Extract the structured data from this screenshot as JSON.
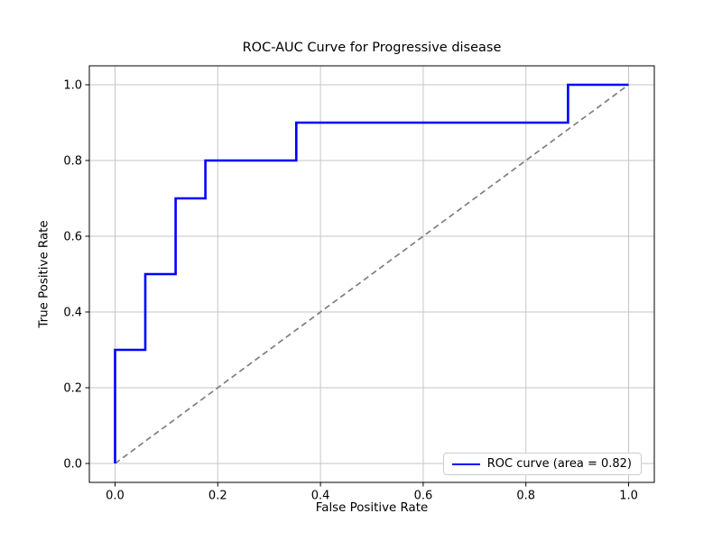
{
  "chart_data": {
    "type": "line",
    "title": "ROC-AUC Curve for Progressive disease",
    "xlabel": "False Positive Rate",
    "ylabel": "True Positive Rate",
    "xlim": [
      -0.05,
      1.05
    ],
    "ylim": [
      -0.05,
      1.05
    ],
    "xticks": [
      0.0,
      0.2,
      0.4,
      0.6,
      0.8,
      1.0
    ],
    "yticks": [
      0.0,
      0.2,
      0.4,
      0.6,
      0.8,
      1.0
    ],
    "tick_decimals": 1,
    "grid": true,
    "legend_position": "lower right",
    "auc": 0.82,
    "series": [
      {
        "name": "ROC curve (area = 0.82)",
        "color": "#0000ff",
        "line_style": "solid",
        "line_width": 2.6,
        "show_in_legend": true,
        "x": [
          0.0,
          0.0,
          0.059,
          0.059,
          0.118,
          0.118,
          0.176,
          0.176,
          0.353,
          0.353,
          0.882,
          0.882,
          1.0
        ],
        "y": [
          0.0,
          0.3,
          0.3,
          0.5,
          0.5,
          0.7,
          0.7,
          0.8,
          0.8,
          0.9,
          0.9,
          1.0,
          1.0
        ]
      },
      {
        "name": "chance-diagonal",
        "color": "#7f7f7f",
        "line_style": "dashed",
        "line_width": 1.7,
        "show_in_legend": false,
        "x": [
          0.0,
          1.0
        ],
        "y": [
          0.0,
          1.0
        ]
      }
    ],
    "colors": {
      "grid": "#c6c6c6",
      "axes": "#000000",
      "text": "#000000",
      "background": "#ffffff",
      "legend_border": "#cccccc",
      "roc_curve": "#0000ff",
      "chance_line": "#7f7f7f"
    }
  }
}
